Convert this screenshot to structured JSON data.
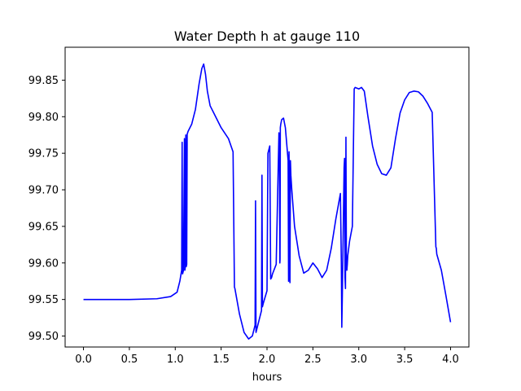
{
  "chart_data": {
    "type": "line",
    "title": "Water Depth h at gauge 110",
    "xlabel": "hours",
    "ylabel": "",
    "xlim": [
      -0.2,
      4.2
    ],
    "ylim": [
      99.485,
      99.895
    ],
    "xticks": [
      0.0,
      0.5,
      1.0,
      1.5,
      2.0,
      2.5,
      3.0,
      3.5,
      4.0
    ],
    "xtick_labels": [
      "0.0",
      "0.5",
      "1.0",
      "1.5",
      "2.0",
      "2.5",
      "3.0",
      "3.5",
      "4.0"
    ],
    "yticks": [
      99.5,
      99.55,
      99.6,
      99.65,
      99.7,
      99.75,
      99.8,
      99.85
    ],
    "ytick_labels": [
      "99.50",
      "99.55",
      "99.60",
      "99.65",
      "99.70",
      "99.75",
      "99.80",
      "99.85"
    ],
    "grid": false,
    "series": [
      {
        "color": "#0000ff",
        "x": [
          0.0,
          0.5,
          0.8,
          0.95,
          1.02,
          1.05,
          1.07,
          1.075,
          1.08,
          1.09,
          1.1,
          1.105,
          1.11,
          1.115,
          1.12,
          1.125,
          1.13,
          1.135,
          1.14,
          1.18,
          1.22,
          1.26,
          1.29,
          1.31,
          1.33,
          1.35,
          1.38,
          1.42,
          1.5,
          1.58,
          1.63,
          1.645,
          1.65,
          1.7,
          1.75,
          1.8,
          1.84,
          1.87,
          1.875,
          1.88,
          1.9,
          1.94,
          1.945,
          1.95,
          1.96,
          2.0,
          2.01,
          2.03,
          2.04,
          2.05,
          2.06,
          2.1,
          2.13,
          2.135,
          2.14,
          2.142,
          2.145,
          2.15,
          2.16,
          2.18,
          2.2,
          2.23,
          2.235,
          2.24,
          2.25,
          2.255,
          2.26,
          2.27,
          2.3,
          2.35,
          2.4,
          2.45,
          2.5,
          2.55,
          2.6,
          2.65,
          2.7,
          2.75,
          2.8,
          2.81,
          2.815,
          2.82,
          2.84,
          2.845,
          2.85,
          2.855,
          2.86,
          2.865,
          2.87,
          2.875,
          2.88,
          2.9,
          2.93,
          2.95,
          2.96,
          3.0,
          3.03,
          3.06,
          3.1,
          3.15,
          3.2,
          3.25,
          3.3,
          3.35,
          3.4,
          3.45,
          3.5,
          3.55,
          3.6,
          3.65,
          3.7,
          3.75,
          3.8,
          3.84,
          3.845,
          3.85,
          3.9,
          3.95,
          4.0
        ],
        "y": [
          99.55,
          99.55,
          99.551,
          99.554,
          99.56,
          99.575,
          99.59,
          99.765,
          99.585,
          99.59,
          99.77,
          99.59,
          99.595,
          99.775,
          99.595,
          99.598,
          99.776,
          99.778,
          99.78,
          99.79,
          99.81,
          99.845,
          99.866,
          99.872,
          99.858,
          99.835,
          99.815,
          99.805,
          99.785,
          99.77,
          99.752,
          99.567,
          99.565,
          99.53,
          99.505,
          99.496,
          99.5,
          99.515,
          99.685,
          99.505,
          99.515,
          99.535,
          99.72,
          99.54,
          99.545,
          99.562,
          99.75,
          99.76,
          99.578,
          99.58,
          99.585,
          99.598,
          99.778,
          99.77,
          99.6,
          99.605,
          99.785,
          99.79,
          99.796,
          99.798,
          99.785,
          99.74,
          99.575,
          99.752,
          99.573,
          99.74,
          99.72,
          99.7,
          99.65,
          99.61,
          99.586,
          99.59,
          99.6,
          99.592,
          99.58,
          99.59,
          99.62,
          99.66,
          99.695,
          99.6,
          99.512,
          99.55,
          99.73,
          99.743,
          99.58,
          99.565,
          99.772,
          99.6,
          99.59,
          99.598,
          99.61,
          99.63,
          99.65,
          99.838,
          99.84,
          99.838,
          99.84,
          99.835,
          99.8,
          99.76,
          99.735,
          99.722,
          99.72,
          99.73,
          99.77,
          99.805,
          99.823,
          99.833,
          99.835,
          99.834,
          99.828,
          99.818,
          99.806,
          99.622,
          99.62,
          99.612,
          99.59,
          99.555,
          99.519
        ]
      }
    ]
  }
}
